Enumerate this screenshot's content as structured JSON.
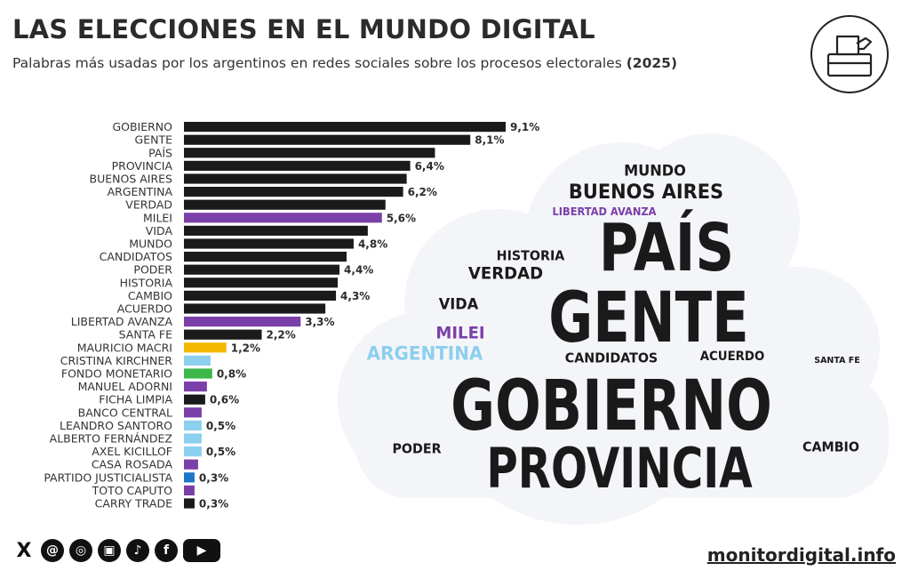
{
  "title": "LAS ELECCIONES EN EL MUNDO DIGITAL",
  "subtitle": {
    "text": "Palabras más usadas por los argentinos en redes sociales sobre los procesos electorales",
    "year": "(2025)"
  },
  "chart_data": {
    "type": "bar",
    "orientation": "horizontal",
    "unit": "%",
    "categories": [
      "GOBIERNO",
      "GENTE",
      "PAÍS",
      "PROVINCIA",
      "BUENOS AIRES",
      "ARGENTINA",
      "VERDAD",
      "MILEI",
      "VIDA",
      "MUNDO",
      "CANDIDATOS",
      "PODER",
      "HISTORIA",
      "CAMBIO",
      "ACUERDO",
      "LIBERTAD AVANZA",
      "SANTA FE",
      "MAURICIO MACRI",
      "CRISTINA KIRCHNER",
      "FONDO MONETARIO",
      "MANUEL ADORNI",
      "FICHA LIMPIA",
      "BANCO CENTRAL",
      "LEANDRO SANTORO",
      "ALBERTO FERNÁNDEZ",
      "AXEL KICILLOF",
      "CASA ROSADA",
      "PARTIDO JUSTICIALISTA",
      "TOTO CAPUTO",
      "CARRY TRADE"
    ],
    "values": [
      9.1,
      8.1,
      7.1,
      6.4,
      6.3,
      6.2,
      5.7,
      5.6,
      5.2,
      4.8,
      4.6,
      4.4,
      4.35,
      4.3,
      4.0,
      3.3,
      2.2,
      1.2,
      0.75,
      0.8,
      0.65,
      0.6,
      0.5,
      0.5,
      0.5,
      0.5,
      0.4,
      0.3,
      0.3,
      0.3
    ],
    "value_labels": [
      "9,1%",
      "8,1%",
      "",
      "6,4%",
      "",
      "6,2%",
      "",
      "5,6%",
      "",
      "4,8%",
      "",
      "4,4%",
      "",
      "4,3%",
      "",
      "3,3%",
      "2,2%",
      "1,2%",
      "",
      "0,8%",
      "",
      "0,6%",
      "",
      "0,5%",
      "",
      "0,5%",
      "",
      "0,3%",
      "",
      "0,3%"
    ],
    "colors": [
      "#1a1a1a",
      "#1a1a1a",
      "#1a1a1a",
      "#1a1a1a",
      "#1a1a1a",
      "#1a1a1a",
      "#1a1a1a",
      "#7b3fa8",
      "#1a1a1a",
      "#1a1a1a",
      "#1a1a1a",
      "#1a1a1a",
      "#1a1a1a",
      "#1a1a1a",
      "#1a1a1a",
      "#7b3fa8",
      "#1a1a1a",
      "#f5b800",
      "#8ccfee",
      "#3cb84a",
      "#7b3fa8",
      "#1a1a1a",
      "#7b3fa8",
      "#8ccfee",
      "#8ccfee",
      "#8ccfee",
      "#7b3fa8",
      "#1c78c6",
      "#7b3fa8",
      "#1a1a1a"
    ],
    "xlim": [
      0,
      9.1
    ]
  },
  "word_cloud": [
    {
      "text": "GOBIERNO",
      "color": "#1a1a1a"
    },
    {
      "text": "PROVINCIA",
      "color": "#1a1a1a"
    },
    {
      "text": "GENTE",
      "color": "#1a1a1a"
    },
    {
      "text": "PAÍS",
      "color": "#1a1a1a"
    },
    {
      "text": "BUENOS AIRES",
      "color": "#1a1a1a"
    },
    {
      "text": "MUNDO",
      "color": "#1a1a1a"
    },
    {
      "text": "LIBERTAD AVANZA",
      "color": "#7b3fa8"
    },
    {
      "text": "HISTORIA",
      "color": "#1a1a1a"
    },
    {
      "text": "VERDAD",
      "color": "#1a1a1a"
    },
    {
      "text": "VIDA",
      "color": "#1a1a1a"
    },
    {
      "text": "MILEI",
      "color": "#7b3fa8"
    },
    {
      "text": "ARGENTINA",
      "color": "#8ccfee"
    },
    {
      "text": "CANDIDATOS",
      "color": "#1a1a1a"
    },
    {
      "text": "ACUERDO",
      "color": "#1a1a1a"
    },
    {
      "text": "SANTA FE",
      "color": "#1a1a1a"
    },
    {
      "text": "PODER",
      "color": "#1a1a1a"
    },
    {
      "text": "CAMBIO",
      "color": "#1a1a1a"
    }
  ],
  "social": {
    "icons": [
      "x-icon",
      "threads-icon",
      "instagram-icon",
      "newsletter-icon",
      "tiktok-icon",
      "facebook-icon",
      "youtube-icon"
    ],
    "glyphs": [
      "X",
      "@",
      "◎",
      "▣",
      "♪",
      "f",
      "▶"
    ]
  },
  "website": "monitordigital.info"
}
